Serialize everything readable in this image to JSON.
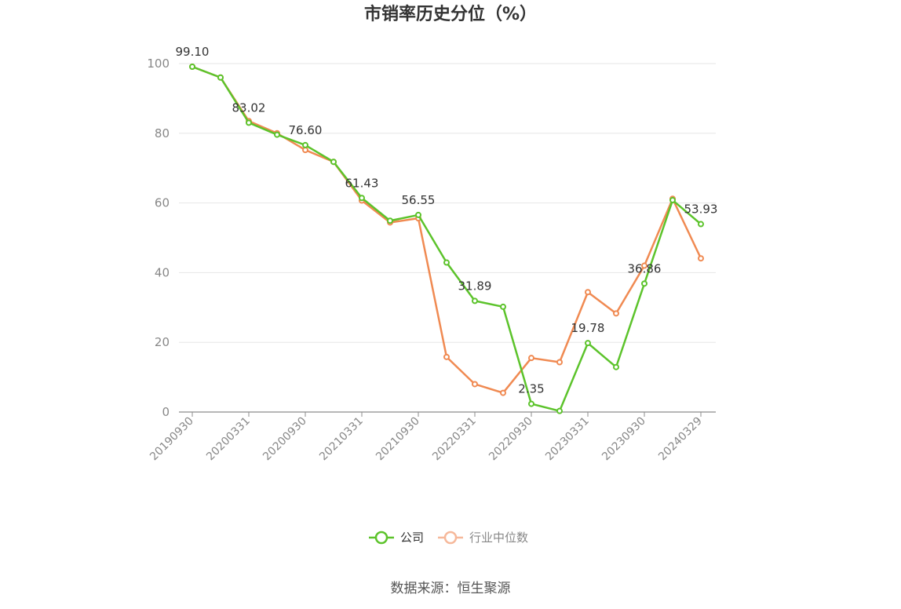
{
  "chart_data": {
    "type": "line",
    "title": "市销率历史分位（%）",
    "source": "数据来源：恒生聚源",
    "ylim": [
      0,
      100
    ],
    "yticks": [
      "0",
      "20",
      "40",
      "60",
      "80",
      "100"
    ],
    "x": [
      "20190930",
      "20191231",
      "20200331",
      "20200630",
      "20200930",
      "20201231",
      "20210331",
      "20210630",
      "20210930",
      "20211231",
      "20220331",
      "20220630",
      "20220930",
      "20221230",
      "20230331",
      "20230630",
      "20230930",
      "20231229",
      "20240329"
    ],
    "xtick_labels": [
      "20190930",
      "20200331",
      "20200930",
      "20210331",
      "20210930",
      "20220331",
      "20220930",
      "20230331",
      "20230930",
      "20240329"
    ],
    "grid": true,
    "legend_position": "bottom",
    "series": [
      {
        "name": "公司",
        "color": "#5cc32b",
        "values": [
          99.1,
          96.0,
          83.02,
          79.6,
          76.6,
          71.8,
          61.43,
          54.9,
          56.55,
          42.9,
          31.89,
          30.2,
          2.35,
          0.3,
          19.78,
          12.9,
          36.86,
          60.8,
          53.93
        ]
      },
      {
        "name": "行业中位数",
        "color": "#f08a52",
        "values": [
          99.1,
          96.0,
          83.5,
          80.0,
          75.2,
          71.8,
          60.7,
          54.4,
          55.6,
          15.8,
          8.0,
          5.5,
          15.5,
          14.3,
          34.4,
          28.3,
          42.0,
          61.2,
          44.1
        ]
      }
    ],
    "data_labels": [
      {
        "index": 0,
        "text": "99.10"
      },
      {
        "index": 2,
        "text": "83.02"
      },
      {
        "index": 4,
        "text": "76.60"
      },
      {
        "index": 6,
        "text": "61.43"
      },
      {
        "index": 8,
        "text": "56.55"
      },
      {
        "index": 10,
        "text": "31.89"
      },
      {
        "index": 12,
        "text": "2.35"
      },
      {
        "index": 14,
        "text": "19.78"
      },
      {
        "index": 16,
        "text": "36.86"
      },
      {
        "index": 18,
        "text": "53.93"
      }
    ]
  }
}
